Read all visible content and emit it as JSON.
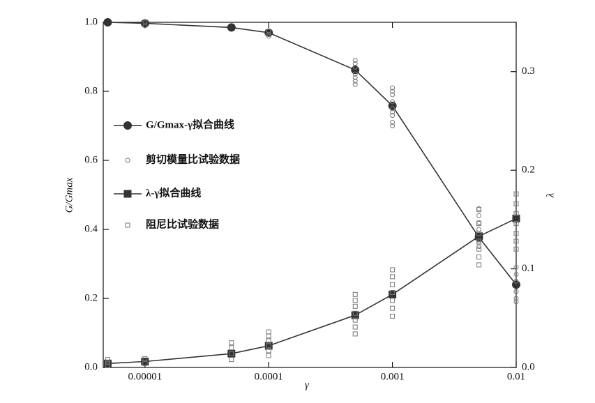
{
  "chart_data": {
    "type": "line",
    "xlabel": "γ",
    "ylabel": "G/Gmax",
    "y2label": "λ",
    "xscale": "log",
    "xlim": [
      4.6e-06,
      0.01
    ],
    "xticks": [
      1e-05,
      0.0001,
      0.001,
      0.01
    ],
    "ylim": [
      0,
      1
    ],
    "yticks": [
      {
        "value": 0,
        "label": "0.0"
      },
      0.2,
      0.4,
      0.6,
      0.8,
      {
        "value": 1,
        "label": "1.0"
      }
    ],
    "y2lim": [
      0,
      0.35
    ],
    "y2ticks": [
      {
        "value": 0,
        "label": "0.0"
      },
      0.1,
      0.2,
      0.3
    ],
    "series": [
      {
        "name": "G/Gmax-γ拟合曲线",
        "kind": "line",
        "marker": "circle",
        "color": "#333333",
        "x": [
          5e-06,
          1e-05,
          5e-05,
          0.0001,
          0.0005,
          0.001,
          0.005,
          0.01
        ],
        "values": [
          1.0,
          0.997,
          0.985,
          0.97,
          0.862,
          0.758,
          0.377,
          0.24
        ]
      },
      {
        "name": "剪切模量比试验数据",
        "kind": "scatter",
        "marker": "circle",
        "color": "#777777",
        "x": [
          1e-05,
          1e-05,
          0.0001,
          0.0001,
          0.0001,
          0.0005,
          0.0005,
          0.0005,
          0.0005,
          0.0005,
          0.0005,
          0.0005,
          0.001,
          0.001,
          0.001,
          0.001,
          0.001,
          0.001,
          0.001,
          0.001,
          0.001,
          0.005,
          0.005,
          0.005,
          0.005,
          0.005,
          0.005,
          0.005,
          0.005,
          0.01,
          0.01,
          0.01,
          0.01,
          0.01,
          0.01
        ],
        "values": [
          0.99,
          1.0,
          0.96,
          0.965,
          0.975,
          0.82,
          0.83,
          0.84,
          0.85,
          0.87,
          0.88,
          0.89,
          0.7,
          0.71,
          0.73,
          0.74,
          0.75,
          0.77,
          0.79,
          0.8,
          0.81,
          0.35,
          0.36,
          0.37,
          0.38,
          0.4,
          0.42,
          0.44,
          0.46,
          0.19,
          0.2,
          0.22,
          0.25,
          0.27,
          0.29
        ]
      },
      {
        "name": "λ-γ拟合曲线",
        "kind": "line",
        "marker": "square",
        "color": "#333333",
        "axis": "y2",
        "x": [
          5e-06,
          1e-05,
          5e-05,
          0.0001,
          0.0005,
          0.001,
          0.005,
          0.01
        ],
        "values": [
          0.004,
          0.006,
          0.014,
          0.022,
          0.053,
          0.074,
          0.133,
          0.151
        ]
      },
      {
        "name": "阻尼比试验数据",
        "kind": "scatter",
        "marker": "square",
        "color": "#777777",
        "axis": "y2",
        "x": [
          5e-06,
          5e-06,
          5e-06,
          1e-05,
          1e-05,
          5e-05,
          5e-05,
          5e-05,
          5e-05,
          0.0001,
          0.0001,
          0.0001,
          0.0001,
          0.0001,
          0.0001,
          0.0005,
          0.0005,
          0.0005,
          0.0005,
          0.0005,
          0.0005,
          0.0005,
          0.001,
          0.001,
          0.001,
          0.001,
          0.001,
          0.001,
          0.001,
          0.005,
          0.005,
          0.005,
          0.005,
          0.005,
          0.005,
          0.005,
          0.01,
          0.01,
          0.01,
          0.01,
          0.01,
          0.01,
          0.01
        ],
        "values": [
          0.002,
          0.005,
          0.008,
          0.004,
          0.009,
          0.008,
          0.014,
          0.02,
          0.025,
          0.012,
          0.017,
          0.022,
          0.027,
          0.032,
          0.036,
          0.034,
          0.041,
          0.048,
          0.055,
          0.062,
          0.068,
          0.074,
          0.052,
          0.06,
          0.068,
          0.076,
          0.084,
          0.092,
          0.099,
          0.104,
          0.112,
          0.12,
          0.128,
          0.136,
          0.146,
          0.16,
          0.12,
          0.128,
          0.136,
          0.146,
          0.156,
          0.166,
          0.176
        ]
      }
    ]
  }
}
